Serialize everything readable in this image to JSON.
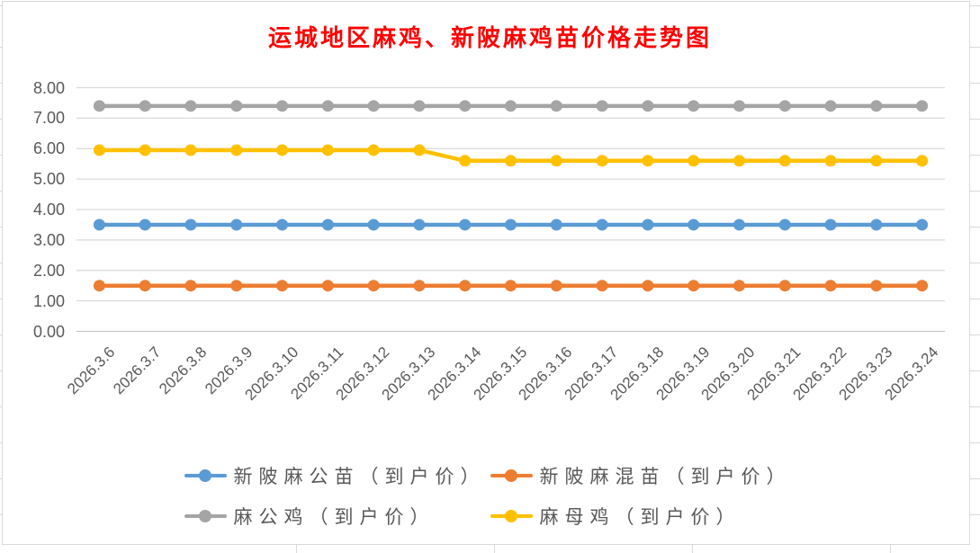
{
  "chart_data": {
    "type": "line",
    "title": "运城地区麻鸡、新陂麻鸡苗价格走势图",
    "categories": [
      "2026.3.6",
      "2026.3.7",
      "2026.3.8",
      "2026.3.9",
      "2026.3.10",
      "2026.3.11",
      "2026.3.12",
      "2026.3.13",
      "2026.3.14",
      "2026.3.15",
      "2026.3.16",
      "2026.3.17",
      "2026.3.18",
      "2026.3.19",
      "2026.3.20",
      "2026.3.21",
      "2026.3.22",
      "2026.3.23",
      "2026.3.24"
    ],
    "series": [
      {
        "name": "新陂麻公苗（到户价）",
        "color": "#5B9BD5",
        "values": [
          3.5,
          3.5,
          3.5,
          3.5,
          3.5,
          3.5,
          3.5,
          3.5,
          3.5,
          3.5,
          3.5,
          3.5,
          3.5,
          3.5,
          3.5,
          3.5,
          3.5,
          3.5,
          3.5
        ]
      },
      {
        "name": "新陂麻混苗（到户价）",
        "color": "#ED7D31",
        "values": [
          1.5,
          1.5,
          1.5,
          1.5,
          1.5,
          1.5,
          1.5,
          1.5,
          1.5,
          1.5,
          1.5,
          1.5,
          1.5,
          1.5,
          1.5,
          1.5,
          1.5,
          1.5,
          1.5
        ]
      },
      {
        "name": "麻公鸡（到户价）",
        "color": "#A5A5A5",
        "values": [
          7.4,
          7.4,
          7.4,
          7.4,
          7.4,
          7.4,
          7.4,
          7.4,
          7.4,
          7.4,
          7.4,
          7.4,
          7.4,
          7.4,
          7.4,
          7.4,
          7.4,
          7.4,
          7.4
        ]
      },
      {
        "name": "麻母鸡（到户价）",
        "color": "#FFC000",
        "values": [
          5.95,
          5.95,
          5.95,
          5.95,
          5.95,
          5.95,
          5.95,
          5.95,
          5.6,
          5.6,
          5.6,
          5.6,
          5.6,
          5.6,
          5.6,
          5.6,
          5.6,
          5.6,
          5.6
        ]
      }
    ],
    "ylim": [
      0,
      8
    ],
    "y_tick_labels": [
      "8.00",
      "7.00",
      "6.00",
      "5.00",
      "4.00",
      "3.00",
      "2.00",
      "1.00",
      "0.00"
    ],
    "grid": true,
    "legend_position": "bottom",
    "marker": "circle"
  },
  "colors": {
    "title": "#FF0000",
    "axis_text": "#595959",
    "gridline": "#D9D9D9",
    "axis_line": "#C6C6C6",
    "chart_border": "#D9D9D9",
    "background": "#FFFFFF"
  }
}
